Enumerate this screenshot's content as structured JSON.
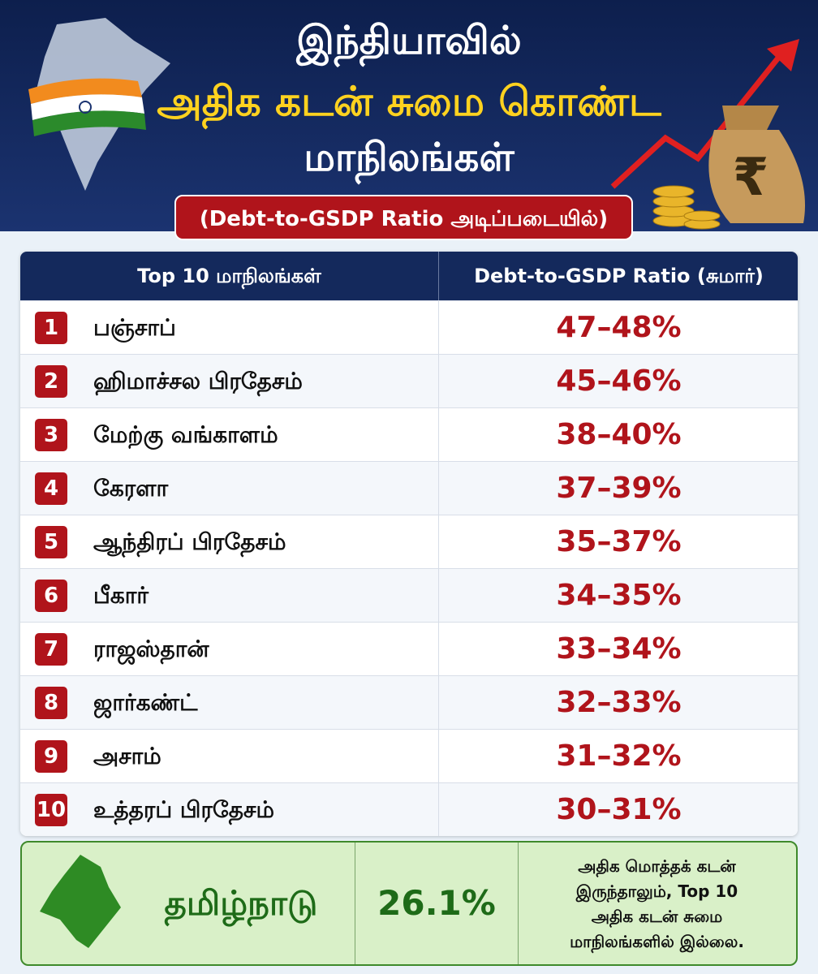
{
  "header": {
    "title_lines": [
      "இந்தியாவில்",
      "அதிக கடன் சுமை கொண்ட",
      "மாநிலங்கள்"
    ],
    "subtitle": "(Debt-to-GSDP Ratio அடிப்படையில்)"
  },
  "table": {
    "columns": [
      "Top 10 மாநிலங்கள்",
      "Debt-to-GSDP Ratio (சுமார்)"
    ],
    "rows": [
      [
        "1",
        "பஞ்சாப்",
        "47–48%"
      ],
      [
        "2",
        "ஹிமாச்சல பிரதேசம்",
        "45–46%"
      ],
      [
        "3",
        "மேற்கு வங்காளம்",
        "38–40%"
      ],
      [
        "4",
        "கேரளா",
        "37–39%"
      ],
      [
        "5",
        "ஆந்திரப் பிரதேசம்",
        "35–37%"
      ],
      [
        "6",
        "பீகார்",
        "34–35%"
      ],
      [
        "7",
        "ராஜஸ்தான்",
        "33–34%"
      ],
      [
        "8",
        "ஜார்கண்ட்",
        "32–33%"
      ],
      [
        "9",
        "அசாம்",
        "31–32%"
      ],
      [
        "10",
        "உத்தரப் பிரதேசம்",
        "30–31%"
      ]
    ]
  },
  "footer": {
    "state": "தமிழ்நாடு",
    "ratio": "26.1%",
    "note_lines": [
      "அதிக மொத்தக் கடன்",
      "இருந்தாலும், Top 10",
      "அதிக கடன் சுமை",
      "மாநிலங்களில் இல்லை."
    ]
  }
}
